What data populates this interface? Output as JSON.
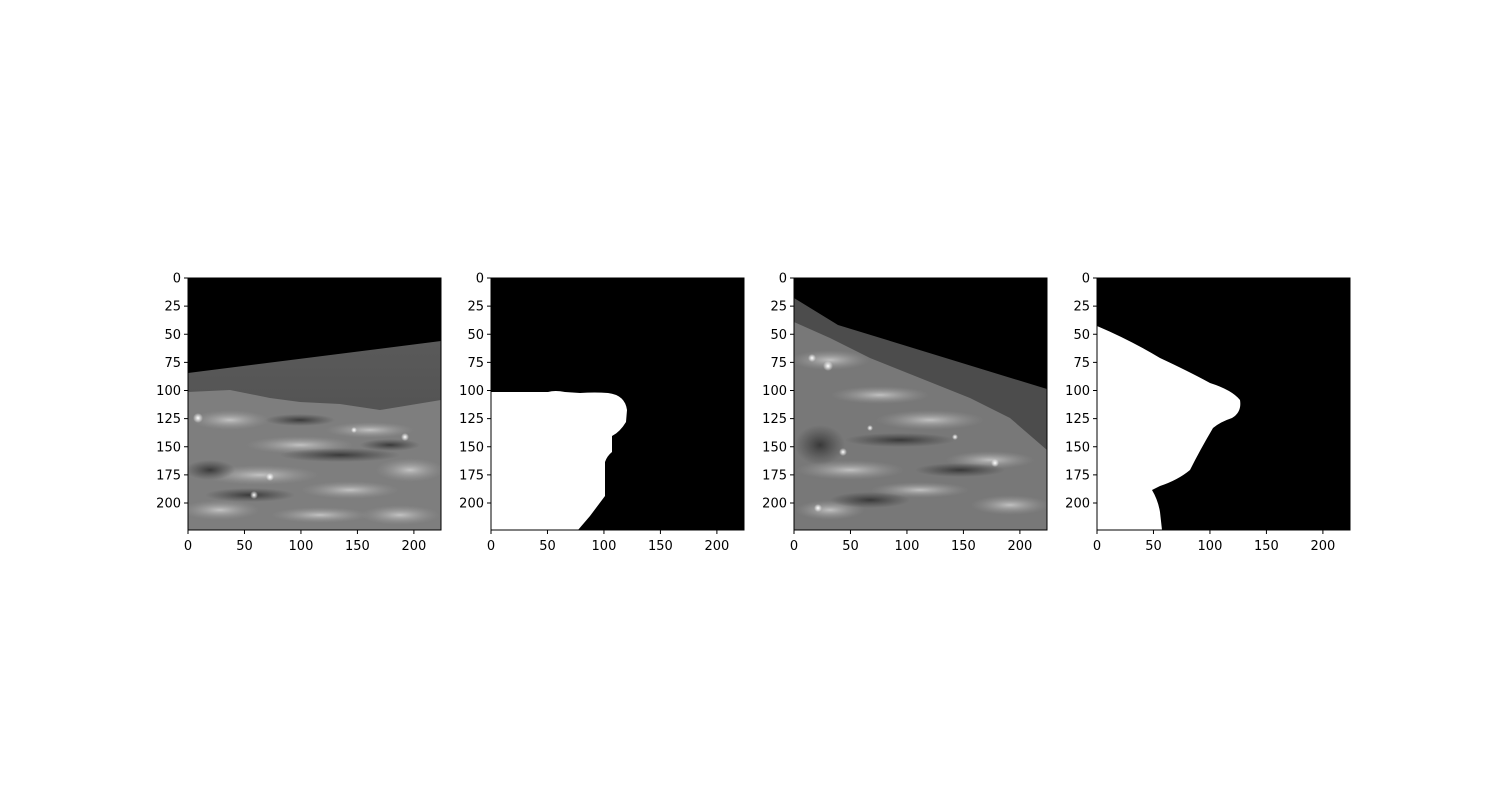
{
  "figure": {
    "background": "#ffffff",
    "panels": [
      {
        "id": "ultrasound-1",
        "kind": "grayscale-image",
        "xticks": [
          0,
          50,
          100,
          150,
          200
        ],
        "yticks": [
          0,
          25,
          50,
          75,
          100,
          125,
          150,
          175,
          200
        ],
        "xlim": [
          0,
          224
        ],
        "ylim": [
          224,
          0
        ]
      },
      {
        "id": "mask-1",
        "kind": "binary-mask",
        "xticks": [
          0,
          50,
          100,
          150,
          200
        ],
        "yticks": [
          0,
          25,
          50,
          75,
          100,
          125,
          150,
          175,
          200
        ],
        "xlim": [
          0,
          224
        ],
        "ylim": [
          224,
          0
        ]
      },
      {
        "id": "ultrasound-2",
        "kind": "grayscale-image",
        "xticks": [
          0,
          50,
          100,
          150,
          200
        ],
        "yticks": [
          0,
          25,
          50,
          75,
          100,
          125,
          150,
          175,
          200
        ],
        "xlim": [
          0,
          224
        ],
        "ylim": [
          224,
          0
        ]
      },
      {
        "id": "mask-2",
        "kind": "binary-mask",
        "xticks": [
          0,
          50,
          100,
          150,
          200
        ],
        "yticks": [
          0,
          25,
          50,
          75,
          100,
          125,
          150,
          175,
          200
        ],
        "xlim": [
          0,
          224
        ],
        "ylim": [
          224,
          0
        ]
      }
    ],
    "colors": {
      "mask_foreground": "#ffffff",
      "mask_background": "#000000",
      "image_background": "#000000",
      "axis": "#000000"
    }
  }
}
